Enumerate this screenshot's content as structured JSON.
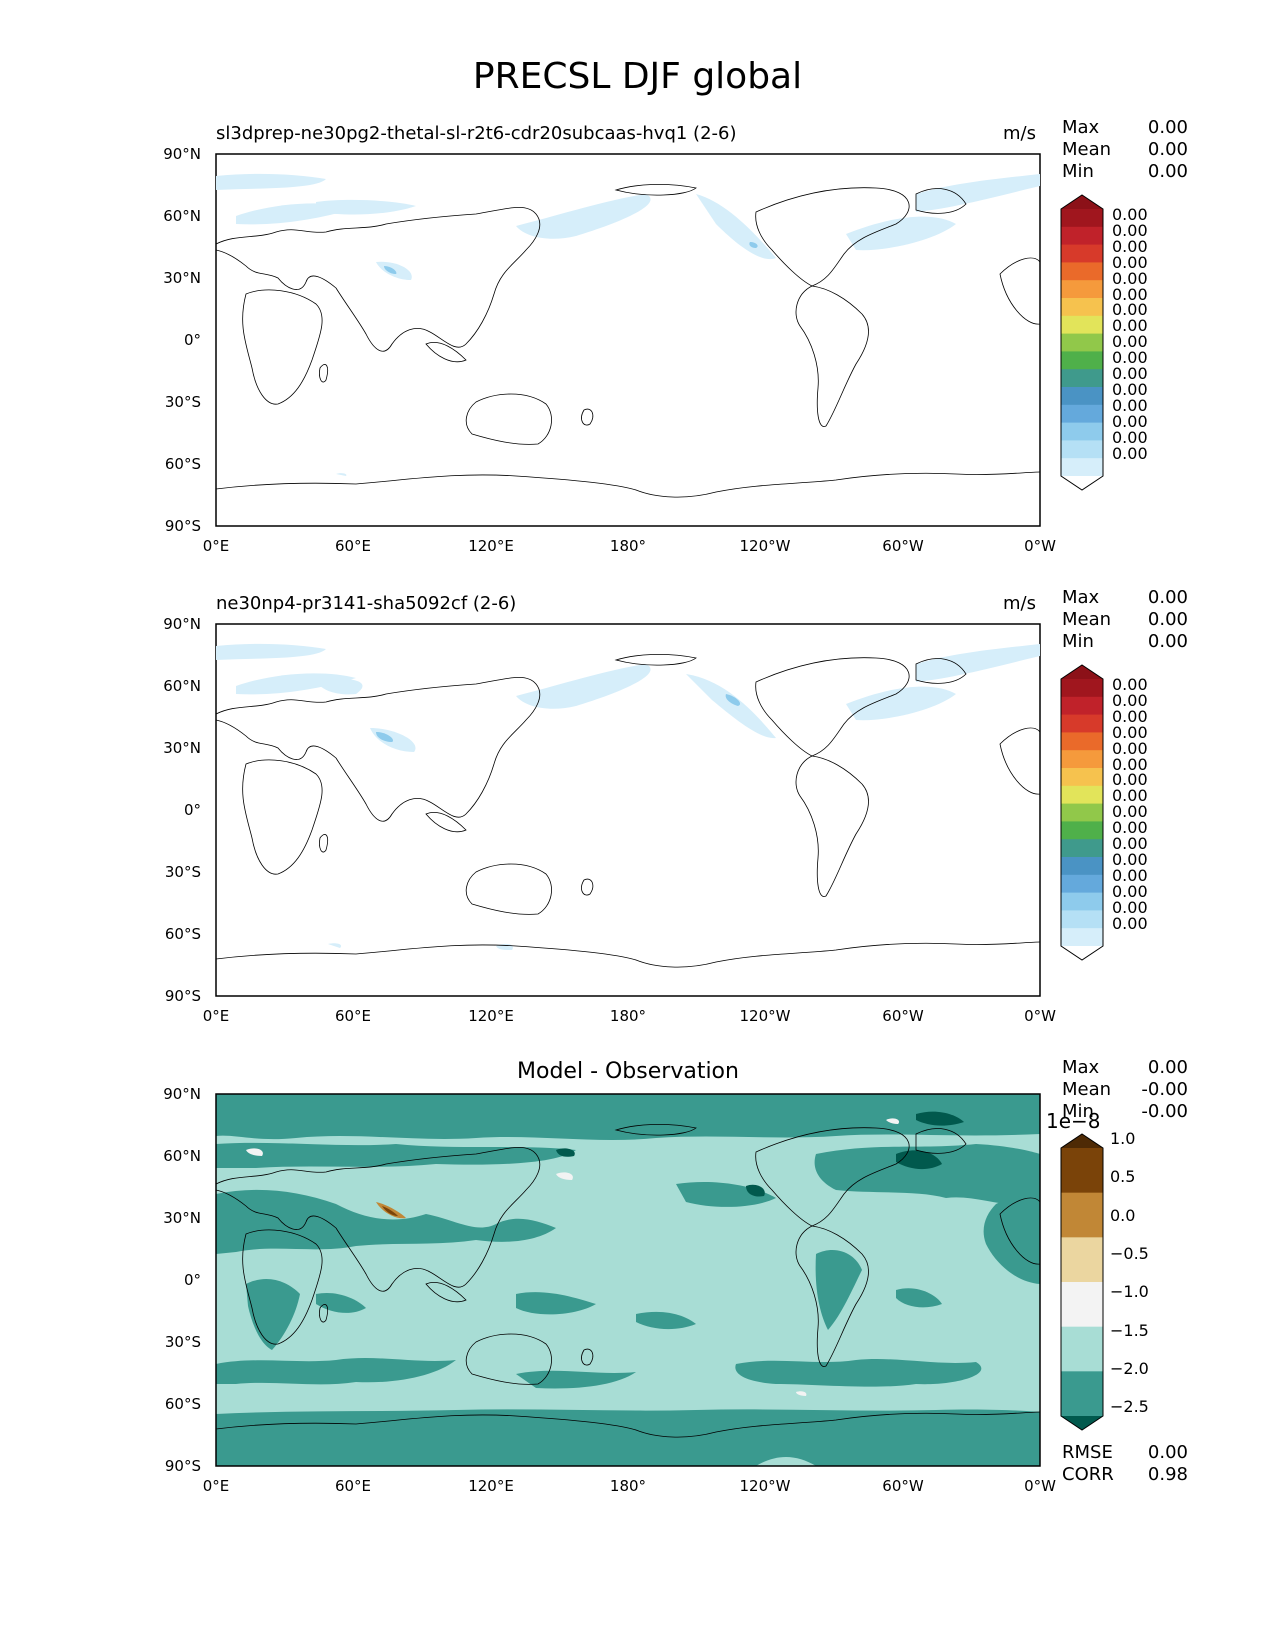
{
  "figure_title": "PRECSL DJF global",
  "panels": [
    {
      "title": "sl3dprep-ne30pg2-thetal-sl-r2t6-cdr20subcaas-hvq1 (2-6)",
      "units": "m/s",
      "stats": [
        {
          "label": "Max",
          "value": "0.00"
        },
        {
          "label": "Mean",
          "value": "0.00"
        },
        {
          "label": "Min",
          "value": "0.00"
        }
      ],
      "colorbar_ticks": [
        "0.00",
        "0.00",
        "0.00",
        "0.00",
        "0.00",
        "0.00",
        "0.00",
        "0.00",
        "0.00",
        "0.00",
        "0.00",
        "0.00",
        "0.00",
        "0.00",
        "0.00",
        "0.00"
      ]
    },
    {
      "title": "ne30np4-pr3141-sha5092cf (2-6)",
      "units": "m/s",
      "stats": [
        {
          "label": "Max",
          "value": "0.00"
        },
        {
          "label": "Mean",
          "value": "0.00"
        },
        {
          "label": "Min",
          "value": "0.00"
        }
      ],
      "colorbar_ticks": [
        "0.00",
        "0.00",
        "0.00",
        "0.00",
        "0.00",
        "0.00",
        "0.00",
        "0.00",
        "0.00",
        "0.00",
        "0.00",
        "0.00",
        "0.00",
        "0.00",
        "0.00",
        "0.00"
      ]
    },
    {
      "title": "Model - Observation",
      "stats": [
        {
          "label": "Max",
          "value": "0.00"
        },
        {
          "label": "Mean",
          "value": "-0.00"
        },
        {
          "label": "Min",
          "value": "-0.00"
        }
      ],
      "colorbar_offset": "1e−8",
      "colorbar_ticks": [
        "1.0",
        "0.5",
        "0.0",
        "−0.5",
        "−1.0",
        "−1.5",
        "−2.0",
        "−2.5"
      ],
      "extra_stats": [
        {
          "label": "RMSE",
          "value": "0.00"
        },
        {
          "label": "CORR",
          "value": "0.98"
        }
      ]
    }
  ],
  "axes": {
    "x_ticks": [
      "0°E",
      "60°E",
      "120°E",
      "180°",
      "120°W",
      "60°W",
      "0°W"
    ],
    "y_ticks": [
      "90°N",
      "60°N",
      "30°N",
      "0°",
      "30°S",
      "60°S",
      "90°S"
    ]
  },
  "colors": {
    "precip_scale": [
      "#ffffff",
      "#d6eefa",
      "#b5e0f5",
      "#8ecbec",
      "#64a9dc",
      "#4a93c4",
      "#3f9a8c",
      "#4fb04a",
      "#91c84a",
      "#e2e45a",
      "#f6c24e",
      "#f59a3c",
      "#ea6a2a",
      "#d73a2a",
      "#c0222a",
      "#a0161e",
      "#8c1118"
    ],
    "diff_scale": [
      "#01594d",
      "#3a9a8f",
      "#a8ddd5",
      "#f3f3f3",
      "#ebd6a0",
      "#c18736",
      "#7a4309",
      "#4e2a05"
    ]
  },
  "chart_data": [
    {
      "type": "heatmap",
      "title": "sl3dprep-ne30pg2-thetal-sl-r2t6-cdr20subcaas-hvq1 (2-6)",
      "units": "m/s",
      "x_ticks": [
        "0°E",
        "60°E",
        "120°E",
        "180°",
        "120°W",
        "60°W",
        "0°W"
      ],
      "y_ticks": [
        "90°N",
        "60°N",
        "30°N",
        "0°",
        "30°S",
        "60°S",
        "90°S"
      ],
      "xlim": [
        0,
        360
      ],
      "ylim": [
        -90,
        90
      ],
      "colorbar_levels": 16,
      "stats": {
        "max": 0.0,
        "mean": 0.0,
        "min": 0.0
      }
    },
    {
      "type": "heatmap",
      "title": "ne30np4-pr3141-sha5092cf (2-6)",
      "units": "m/s",
      "x_ticks": [
        "0°E",
        "60°E",
        "120°E",
        "180°",
        "120°W",
        "60°W",
        "0°W"
      ],
      "y_ticks": [
        "90°N",
        "60°N",
        "30°N",
        "0°",
        "30°S",
        "60°S",
        "90°S"
      ],
      "xlim": [
        0,
        360
      ],
      "ylim": [
        -90,
        90
      ],
      "colorbar_levels": 16,
      "stats": {
        "max": 0.0,
        "mean": 0.0,
        "min": 0.0
      }
    },
    {
      "type": "heatmap",
      "title": "Model - Observation",
      "x_ticks": [
        "0°E",
        "60°E",
        "120°E",
        "180°",
        "120°W",
        "60°W",
        "0°W"
      ],
      "y_ticks": [
        "90°N",
        "60°N",
        "30°N",
        "0°",
        "30°S",
        "60°S",
        "90°S"
      ],
      "xlim": [
        0,
        360
      ],
      "ylim": [
        -90,
        90
      ],
      "colorbar_levels": [
        1.0,
        0.5,
        0.0,
        -0.5,
        -1.0,
        -1.5,
        -2.0,
        -2.5
      ],
      "colorbar_scale": "1e-8",
      "stats": {
        "max": 0.0,
        "mean": -0.0,
        "min": -0.0,
        "rmse": 0.0,
        "corr": 0.98
      }
    }
  ]
}
